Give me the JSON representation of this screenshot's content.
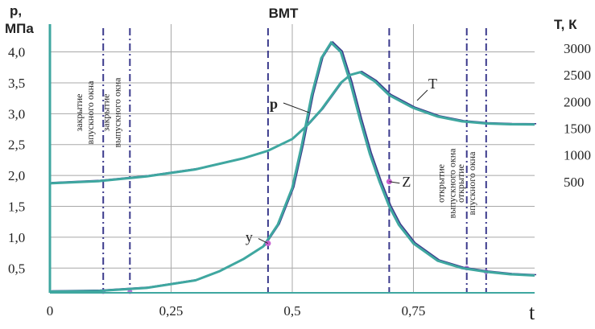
{
  "chart_data": {
    "type": "line",
    "title": "BMT",
    "xlabel": "t",
    "ylabel_left": "p, МПа",
    "ylabel_left_line1": "p,",
    "ylabel_left_line2": "МПа",
    "ylabel_right": "Т, К",
    "xlim": [
      0,
      1.0
    ],
    "ylim_left": [
      0.1,
      4.45
    ],
    "ylim_right": [
      -1580,
      3450
    ],
    "x_ticks": [
      {
        "value": 0,
        "label": "0"
      },
      {
        "value": 0.25,
        "label": "0,25"
      },
      {
        "value": 0.5,
        "label": "0,5"
      },
      {
        "value": 0.75,
        "label": "0,75"
      }
    ],
    "y_left_ticks": [
      {
        "value": 0.5,
        "label": "0,5"
      },
      {
        "value": 1.0,
        "label": "1,0"
      },
      {
        "value": 1.5,
        "label": "1,5"
      },
      {
        "value": 2.0,
        "label": "2,0"
      },
      {
        "value": 2.5,
        "label": "2,5"
      },
      {
        "value": 3.0,
        "label": "3,0"
      },
      {
        "value": 3.5,
        "label": "3,5"
      },
      {
        "value": 4.0,
        "label": "4,0"
      }
    ],
    "y_right_ticks": [
      {
        "value": 500,
        "label": "500"
      },
      {
        "value": 1000,
        "label": "1000"
      },
      {
        "value": 1500,
        "label": "1500"
      },
      {
        "value": 2000,
        "label": "2000"
      },
      {
        "value": 2500,
        "label": "2500"
      },
      {
        "value": 3000,
        "label": "3000"
      }
    ],
    "grid": true,
    "series": [
      {
        "name": "p",
        "axis": "left",
        "color": "#3fa7a0",
        "x": [
          0,
          0.1,
          0.2,
          0.3,
          0.35,
          0.4,
          0.44,
          0.47,
          0.5,
          0.52,
          0.54,
          0.56,
          0.58,
          0.6,
          0.62,
          0.64,
          0.66,
          0.68,
          0.7,
          0.72,
          0.75,
          0.8,
          0.85,
          0.9,
          0.95,
          1.0
        ],
        "values": [
          0.12,
          0.13,
          0.18,
          0.3,
          0.45,
          0.65,
          0.85,
          1.2,
          1.8,
          2.5,
          3.3,
          3.9,
          4.15,
          4.0,
          3.5,
          2.9,
          2.35,
          1.9,
          1.5,
          1.2,
          0.9,
          0.62,
          0.5,
          0.44,
          0.4,
          0.38
        ]
      },
      {
        "name": "T",
        "axis": "right",
        "color": "#3fa7a0",
        "x": [
          0,
          0.1,
          0.2,
          0.3,
          0.4,
          0.45,
          0.5,
          0.53,
          0.56,
          0.58,
          0.6,
          0.62,
          0.64,
          0.67,
          0.7,
          0.75,
          0.8,
          0.85,
          0.9,
          0.95,
          1.0
        ],
        "values": [
          470,
          510,
          600,
          730,
          940,
          1080,
          1300,
          1550,
          1850,
          2100,
          2350,
          2500,
          2550,
          2380,
          2120,
          1880,
          1720,
          1630,
          1590,
          1575,
          1570
        ]
      }
    ],
    "series_labels": {
      "p": "p",
      "T": "T"
    },
    "points": [
      {
        "label": "y",
        "x": 0.45,
        "y": 0.9
      },
      {
        "label": "Z",
        "x": 0.7,
        "y": 1.9
      }
    ],
    "markers": [
      {
        "x": 0.11,
        "label": "закрытие впускного окна",
        "label_line1": "закрытие",
        "label_line2": "впускного окна"
      },
      {
        "x": 0.165,
        "label": "закрытие выпускного окна",
        "label_line1": "закрытие",
        "label_line2": "выпускного окна"
      },
      {
        "x": 0.45,
        "label": ""
      },
      {
        "x": 0.7,
        "label": ""
      },
      {
        "x": 0.86,
        "label": "открытие выпускного окна",
        "label_line1": "открытие",
        "label_line2": "выпускного окна"
      },
      {
        "x": 0.9,
        "label": "открытие впускного окна",
        "label_line1": "открытие",
        "label_line2": "впускного окна"
      }
    ],
    "colors": {
      "curve": "#3fa7a0",
      "curve_outline": "#3b3a8c",
      "marker_line": "#3b3a8c",
      "grid": "#a8a8a8",
      "axis": "#3fa7a0"
    }
  }
}
